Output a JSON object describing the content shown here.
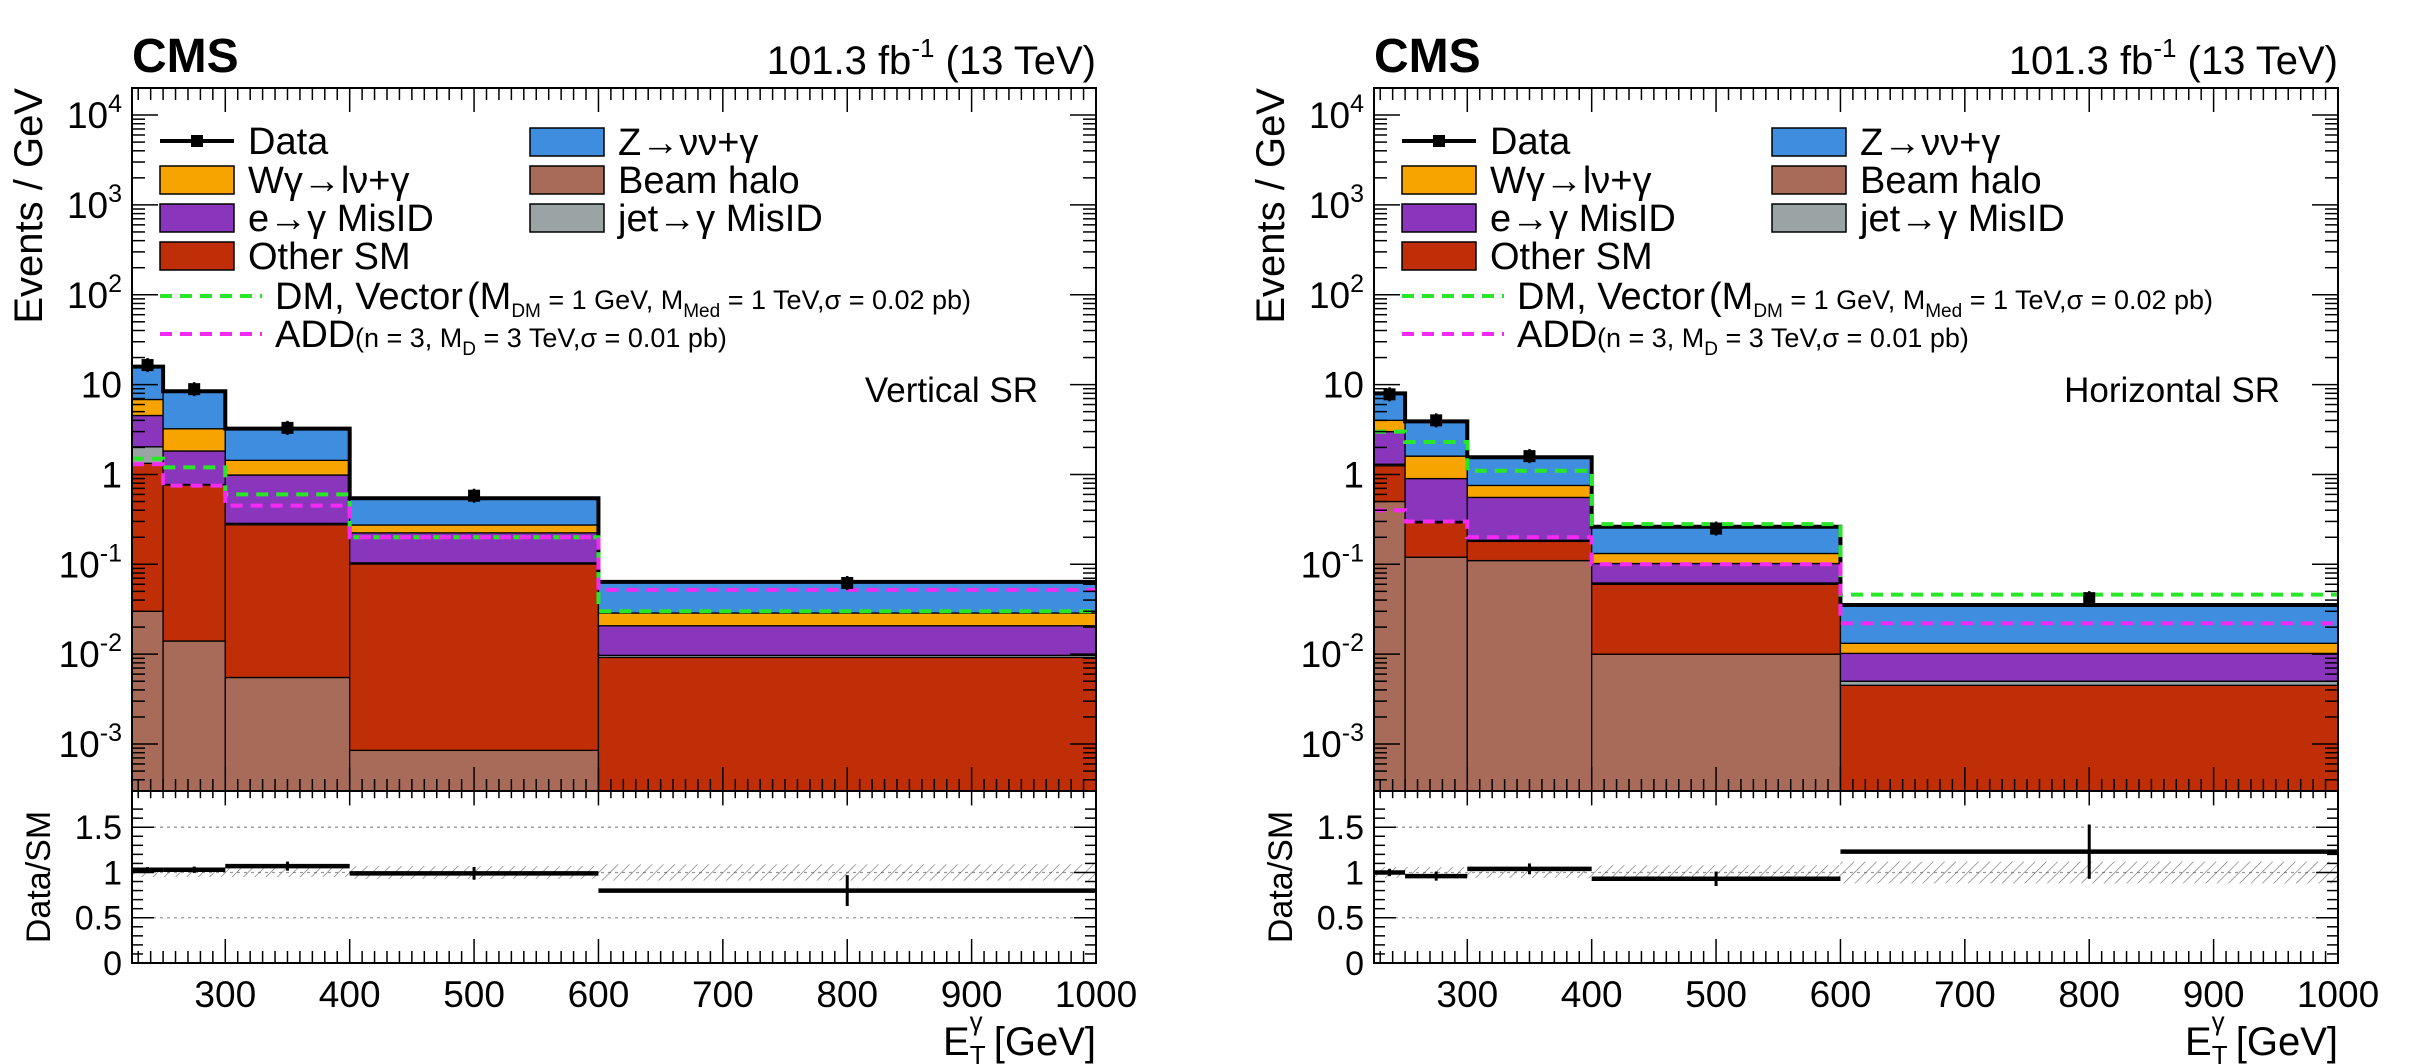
{
  "colors": {
    "w_gamma": "#F8A400",
    "z_nunu_gamma": "#3F8DDE",
    "e_to_gamma": "#8A36BC",
    "other_sm": "#C02E08",
    "beam_halo": "#A86B5A",
    "jet_to_gamma": "#9AA4A4",
    "dm_vector": "#29E629",
    "add": "#F22AF2",
    "data": "#000000"
  },
  "legend": {
    "data": "Data",
    "z_nunu_gamma": "Z→νν+γ",
    "w_gamma": "Wγ→lν+γ",
    "beam_halo": "Beam halo",
    "e_to_gamma": "e→γ MisID",
    "jet_to_gamma": "jet→γ MisID",
    "other_sm": "Other SM",
    "dm_main": "DM, Vector",
    "dm_params": "(M",
    "dm_sub1": "DM",
    "dm_mid": " = 1 GeV, M",
    "dm_sub2": "Med",
    "dm_end": " = 1 TeV,σ = 0.02 pb)",
    "add_main": "ADD",
    "add_params": "(n = 3, M",
    "add_sub": "D",
    "add_end": " = 3 TeV,σ = 0.01 pb)"
  },
  "chart_data": [
    {
      "type": "bar",
      "stacked": true,
      "cms_label": "CMS",
      "lumi_prefix": "101.3 fb",
      "lumi_exp": "-1",
      "lumi_suffix": " (13 TeV)",
      "region_label": "Vertical SR",
      "ylabel": "Events / GeV",
      "ratio_ylabel": "Data/SM",
      "xlabel_main": "E",
      "xlabel_sub": "T",
      "xlabel_sup": "γ",
      "xlabel_unit": " [GeV]",
      "yscale": "log",
      "ylim": [
        0.0003,
        20000
      ],
      "ratio_ylim": [
        0,
        1.9
      ],
      "xlim": [
        225,
        1000
      ],
      "x_ticks": [
        "300",
        "400",
        "500",
        "600",
        "700",
        "800",
        "900",
        "1000"
      ],
      "y_ticks": [
        "10^-3",
        "10^-2",
        "10^-1",
        "1",
        "10",
        "10^2",
        "10^3",
        "10^4"
      ],
      "ratio_ticks": [
        "0",
        "0.5",
        "1",
        "1.5"
      ],
      "bin_edges": [
        225,
        250,
        300,
        400,
        600,
        1000
      ],
      "stack": [
        {
          "key": "beam_halo",
          "name": "Beam halo",
          "values": [
            0.03,
            0.014,
            0.0055,
            0.00085,
            0.0
          ]
        },
        {
          "key": "other_sm",
          "name": "Other SM",
          "values": [
            1.3,
            0.75,
            0.27,
            0.1,
            0.0092
          ]
        },
        {
          "key": "jet_to_gamma",
          "name": "jet→γ MisID",
          "values": [
            0.7,
            0.01,
            0.01,
            0.003,
            0.0005
          ]
        },
        {
          "key": "e_to_gamma",
          "name": "e→γ MisID",
          "values": [
            2.5,
            1.05,
            0.7,
            0.12,
            0.011
          ]
        },
        {
          "key": "w_gamma",
          "name": "Wγ→lν+γ",
          "values": [
            2.3,
            1.4,
            0.45,
            0.05,
            0.008
          ]
        },
        {
          "key": "z_nunu_gamma",
          "name": "Z→νν+γ",
          "values": [
            9.0,
            5.2,
            1.8,
            0.27,
            0.035
          ]
        }
      ],
      "data": {
        "x": [
          237.5,
          275,
          350,
          500,
          800
        ],
        "y": [
          16.5,
          8.9,
          3.3,
          0.58,
          0.062
        ],
        "ratio": [
          1.03,
          1.03,
          1.07,
          0.99,
          0.8
        ],
        "ratio_err": [
          0.03,
          0.035,
          0.05,
          0.07,
          0.17
        ]
      },
      "dm_vector": [
        1.5,
        1.2,
        0.6,
        0.2,
        0.03
      ],
      "add": [
        1.3,
        0.75,
        0.45,
        0.2,
        0.052
      ],
      "syst_band": [
        0.05,
        0.05,
        0.05,
        0.07,
        0.09
      ]
    },
    {
      "type": "bar",
      "stacked": true,
      "cms_label": "CMS",
      "lumi_prefix": "101.3 fb",
      "lumi_exp": "-1",
      "lumi_suffix": " (13 TeV)",
      "region_label": "Horizontal SR",
      "ylabel": "Events / GeV",
      "ratio_ylabel": "Data/SM",
      "xlabel_main": "E",
      "xlabel_sub": "T",
      "xlabel_sup": "γ",
      "xlabel_unit": " [GeV]",
      "yscale": "log",
      "ylim": [
        0.0003,
        20000
      ],
      "ratio_ylim": [
        0,
        1.9
      ],
      "xlim": [
        225,
        1000
      ],
      "x_ticks": [
        "300",
        "400",
        "500",
        "600",
        "700",
        "800",
        "900",
        "1000"
      ],
      "y_ticks": [
        "10^-3",
        "10^-2",
        "10^-1",
        "1",
        "10",
        "10^2",
        "10^3",
        "10^4"
      ],
      "ratio_ticks": [
        "0",
        "0.5",
        "1",
        "1.5"
      ],
      "bin_edges": [
        225,
        250,
        300,
        400,
        600,
        1000
      ],
      "stack": [
        {
          "key": "beam_halo",
          "name": "Beam halo",
          "values": [
            0.5,
            0.12,
            0.11,
            0.01,
            0.0
          ]
        },
        {
          "key": "other_sm",
          "name": "Other SM",
          "values": [
            0.75,
            0.17,
            0.07,
            0.05,
            0.0045
          ]
        },
        {
          "key": "jet_to_gamma",
          "name": "jet→γ MisID",
          "values": [
            0.05,
            0.01,
            0.005,
            0.002,
            0.0005
          ]
        },
        {
          "key": "e_to_gamma",
          "name": "e→γ MisID",
          "values": [
            1.7,
            0.6,
            0.37,
            0.04,
            0.0052
          ]
        },
        {
          "key": "w_gamma",
          "name": "Wγ→lν+γ",
          "values": [
            1.0,
            0.7,
            0.2,
            0.03,
            0.003
          ]
        },
        {
          "key": "z_nunu_gamma",
          "name": "Z→νν+γ",
          "values": [
            4.0,
            2.3,
            0.8,
            0.13,
            0.022
          ]
        }
      ],
      "data": {
        "x": [
          237.5,
          275,
          350,
          500,
          800
        ],
        "y": [
          7.8,
          4.0,
          1.6,
          0.25,
          0.042
        ],
        "ratio": [
          1.0,
          0.96,
          1.04,
          0.93,
          1.23
        ],
        "ratio_err": [
          0.04,
          0.05,
          0.06,
          0.08,
          0.3
        ]
      },
      "dm_vector": [
        3.0,
        2.3,
        1.1,
        0.28,
        0.046
      ],
      "add": [
        0.4,
        0.3,
        0.2,
        0.1,
        0.022
      ],
      "syst_band": [
        0.06,
        0.06,
        0.06,
        0.08,
        0.12
      ]
    }
  ]
}
